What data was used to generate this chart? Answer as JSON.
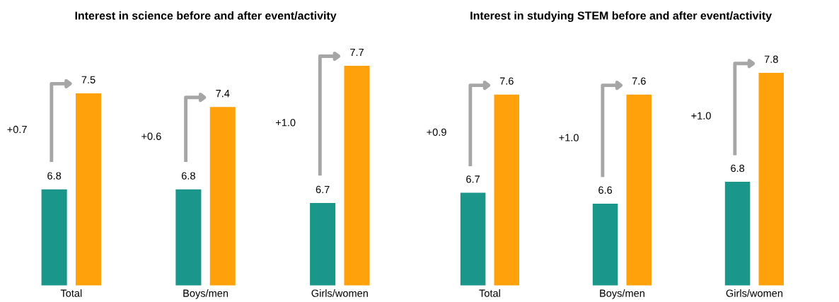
{
  "chart_data": [
    {
      "type": "bar",
      "title": "Interest in science before and after event/activity",
      "categories": [
        "Total",
        "Boys/men",
        "Girls/women"
      ],
      "series": [
        {
          "color": "#1a968a",
          "values": [
            6.8,
            6.8,
            6.7
          ]
        },
        {
          "color": "#ffa10a",
          "values": [
            7.5,
            7.4,
            7.7
          ]
        }
      ],
      "ylim": [
        6.1,
        7.7
      ],
      "data_labels": true,
      "tick_labels": "x",
      "grid": false,
      "legend": false,
      "annotations": [
        "+0.7",
        "+0.6",
        "+1.0"
      ]
    },
    {
      "type": "bar",
      "title": "Interest in studying STEM before and after event/activity",
      "categories": [
        "Total",
        "Boys/men",
        "Girls/women"
      ],
      "series": [
        {
          "color": "#1a968a",
          "values": [
            6.7,
            6.6,
            6.8
          ]
        },
        {
          "color": "#ffa10a",
          "values": [
            7.6,
            7.6,
            7.8
          ]
        }
      ],
      "ylim": [
        5.85,
        7.8
      ],
      "data_labels": true,
      "tick_labels": "x",
      "grid": false,
      "legend": false,
      "annotations": [
        "+0.9",
        "+1.0",
        "+1.0"
      ]
    }
  ]
}
